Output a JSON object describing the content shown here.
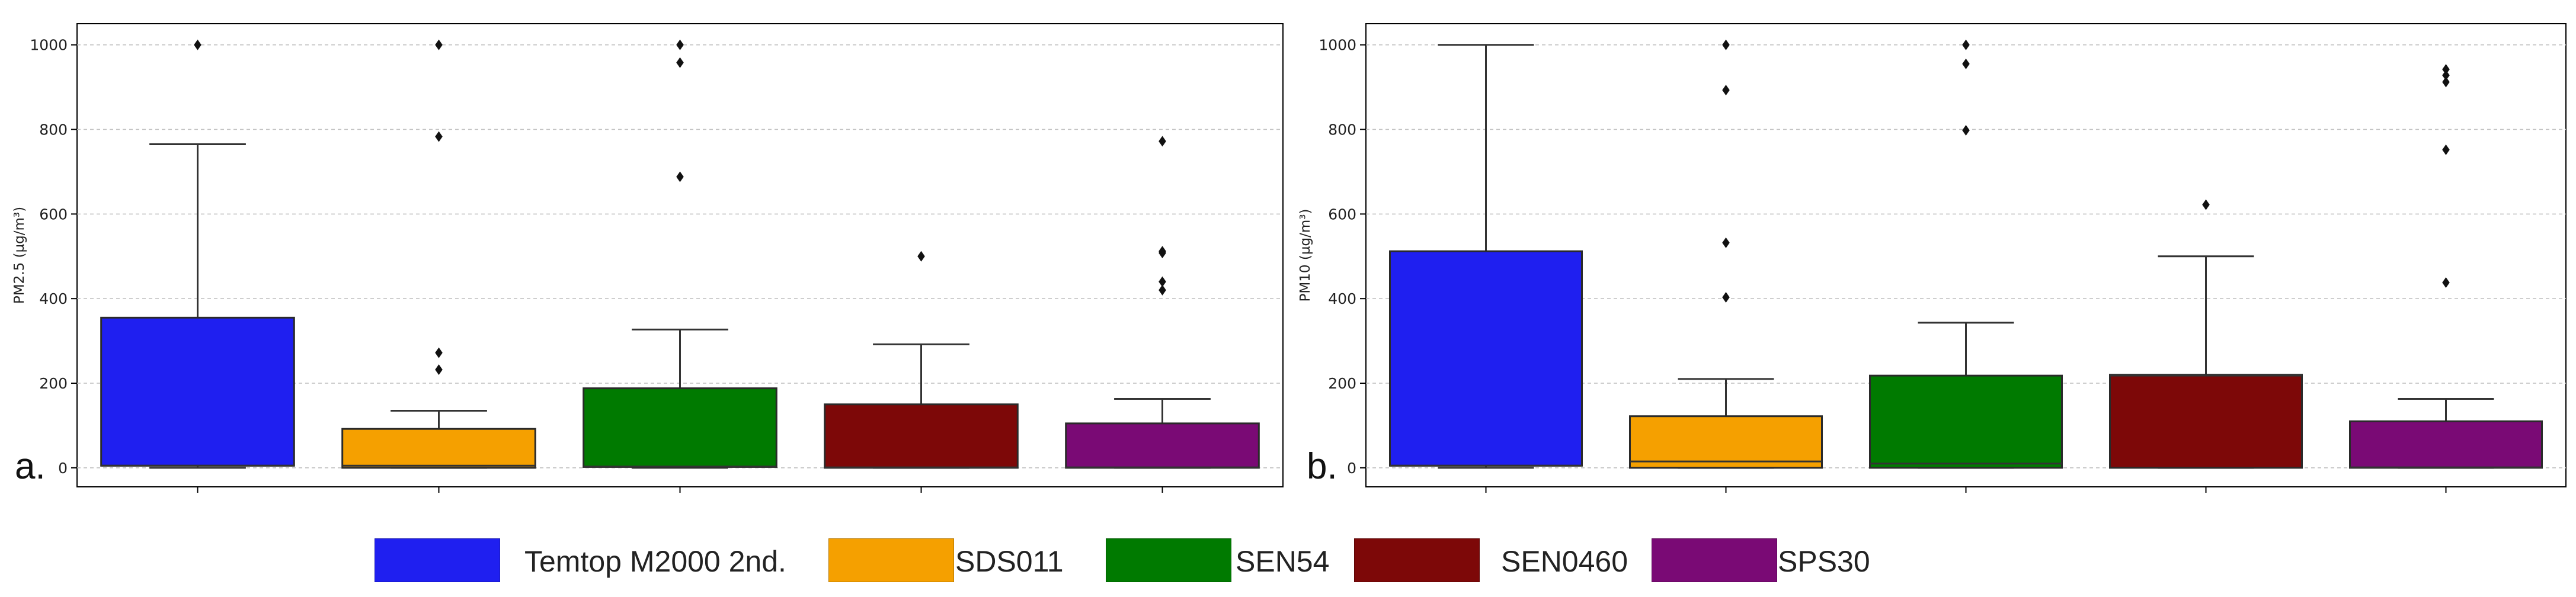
{
  "chart_data": [
    {
      "type": "box",
      "panel_label": "a.",
      "ylabel": "PM2.5 (µg/m³)",
      "ylim": [
        -45,
        1050
      ],
      "yticks": [
        0,
        200,
        400,
        600,
        800,
        1000
      ],
      "grid": "horizontal dashed",
      "series": [
        {
          "name": "Temtop M2000 2nd.",
          "q1": 5,
          "median": 5,
          "q3": 355,
          "whisker_low": 0,
          "whisker_high": 765,
          "outliers": [
            1000
          ]
        },
        {
          "name": "SDS011",
          "q1": 0,
          "median": 5,
          "q3": 92,
          "whisker_low": 0,
          "whisker_high": 135,
          "outliers": [
            232,
            272,
            783,
            1000
          ]
        },
        {
          "name": "SEN54",
          "q1": 2,
          "median": 3,
          "q3": 188,
          "whisker_low": 0,
          "whisker_high": 327,
          "outliers": [
            688,
            958,
            1000
          ]
        },
        {
          "name": "SEN0460",
          "q1": 0,
          "median": 1,
          "q3": 150,
          "whisker_low": 0,
          "whisker_high": 292,
          "outliers": [
            500
          ]
        },
        {
          "name": "SPS30",
          "q1": 0,
          "median": 1,
          "q3": 105,
          "whisker_low": 0,
          "whisker_high": 163,
          "outliers": [
            420,
            440,
            508,
            512,
            772
          ]
        }
      ]
    },
    {
      "type": "box",
      "panel_label": "b.",
      "ylabel": "PM10 (µg/m³)",
      "ylim": [
        -45,
        1050
      ],
      "yticks": [
        0,
        200,
        400,
        600,
        800,
        1000
      ],
      "grid": "horizontal dashed",
      "series": [
        {
          "name": "Temtop M2000 2nd.",
          "q1": 5,
          "median": 5,
          "q3": 512,
          "whisker_low": 0,
          "whisker_high": 1000,
          "outliers": []
        },
        {
          "name": "SDS011",
          "q1": 0,
          "median": 15,
          "q3": 122,
          "whisker_low": 0,
          "whisker_high": 210,
          "outliers": [
            403,
            532,
            893,
            1000
          ]
        },
        {
          "name": "SEN54",
          "q1": 0,
          "median": 10,
          "q3": 218,
          "whisker_low": 0,
          "whisker_high": 343,
          "outliers": [
            798,
            955,
            1000
          ]
        },
        {
          "name": "SEN0460",
          "q1": 0,
          "median": 218,
          "q3": 220,
          "whisker_low": 0,
          "whisker_high": 500,
          "outliers": [
            622
          ]
        },
        {
          "name": "SPS30",
          "q1": 0,
          "median": 1,
          "q3": 110,
          "whisker_low": 0,
          "whisker_high": 163,
          "outliers": [
            438,
            752,
            912,
            928,
            942
          ]
        }
      ]
    }
  ],
  "legend": [
    {
      "label": "Temtop M2000 2nd.",
      "color": "#1f1ff0"
    },
    {
      "label": "SDS011",
      "color": "#f5a000"
    },
    {
      "label": "SEN54",
      "color": "#007a00"
    },
    {
      "label": "SEN0460",
      "color": "#7d0808"
    },
    {
      "label": "SPS30",
      "color": "#7a0a75"
    }
  ]
}
